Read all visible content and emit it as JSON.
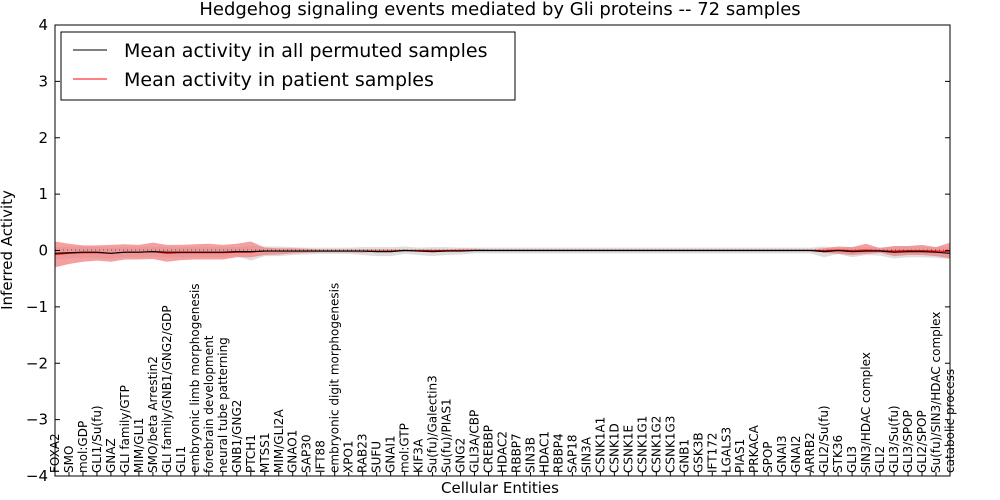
{
  "chart_data": {
    "type": "line",
    "title": "Hedgehog signaling events mediated by Gli proteins -- 72 samples",
    "xlabel": "Cellular Entities",
    "ylabel": "Inferred Activity",
    "ylim": [
      -4,
      4
    ],
    "yticks": [
      -4,
      -3,
      -2,
      -1,
      0,
      1,
      2,
      3,
      4
    ],
    "ytick_labels": [
      "−4",
      "−3",
      "−2",
      "−1",
      "0",
      "1",
      "2",
      "3",
      "4"
    ],
    "legend_position": "top-left",
    "categories": [
      "FOXA2",
      "SMO",
      "mol:GDP",
      "GLI1/Su(fu)",
      "GNAZ",
      "GLI family/GTP",
      "MIM/GLI1",
      "SMO/beta Arrestin2",
      "GLI family/GNB1/GNG2/GDP",
      "GLI1",
      "embryonic limb morphogenesis",
      "forebrain development",
      "neural tube patterning",
      "GNB1/GNG2",
      "PTCH1",
      "MTSS1",
      "MIM/GLI2A",
      "GNAO1",
      "SAP30",
      "IFT88",
      "embryonic digit morphogenesis",
      "XPO1",
      "RAB23",
      "SUFU",
      "GNAI1",
      "mol:GTP",
      "KIF3A",
      "Su(fu)/Galectin3",
      "Su(fu)/PIAS1",
      "GNG2",
      "GLI3A/CBP",
      "CREBBP",
      "HDAC2",
      "RBBP7",
      "SIN3B",
      "HDAC1",
      "RBBP4",
      "SAP18",
      "SIN3A",
      "CSNK1A1",
      "CSNK1D",
      "CSNK1E",
      "CSNK1G1",
      "CSNK1G2",
      "CSNK1G3",
      "GNB1",
      "GSK3B",
      "IFT172",
      "LGALS3",
      "PIAS1",
      "PRKACA",
      "SPOP",
      "GNAI3",
      "GNAI2",
      "ARRB2",
      "GLI2/Su(fu)",
      "STK36",
      "GLI3",
      "SIN3/HDAC complex",
      "GLI2",
      "GLI3/Su(fu)",
      "GLI3/SPOP",
      "GLI2/SPOP",
      "Su(fu)/SIN3/HDAC complex",
      "catabolic process"
    ],
    "series": [
      {
        "name": "Mean activity in all permuted samples",
        "color": "#000000",
        "values": [
          -0.05,
          -0.04,
          -0.03,
          -0.03,
          -0.05,
          -0.03,
          -0.03,
          -0.02,
          -0.03,
          -0.03,
          -0.03,
          -0.03,
          -0.03,
          -0.02,
          -0.02,
          -0.01,
          -0.01,
          -0.01,
          -0.01,
          -0.01,
          -0.01,
          -0.01,
          -0.01,
          -0.02,
          -0.02,
          0.0,
          -0.01,
          -0.02,
          -0.01,
          -0.01,
          0.0,
          0.0,
          0.0,
          0.0,
          0.0,
          0.0,
          0.0,
          0.0,
          0.0,
          0.0,
          0.0,
          0.0,
          0.0,
          0.0,
          0.0,
          0.0,
          0.0,
          0.0,
          0.0,
          0.0,
          0.0,
          0.0,
          0.0,
          0.0,
          0.0,
          -0.02,
          0.0,
          -0.02,
          -0.01,
          -0.01,
          -0.03,
          -0.02,
          -0.02,
          -0.03,
          -0.05
        ],
        "band_lower": [
          -0.16,
          -0.14,
          -0.13,
          -0.13,
          -0.15,
          -0.12,
          -0.12,
          -0.11,
          -0.12,
          -0.12,
          -0.12,
          -0.12,
          -0.12,
          -0.1,
          -0.18,
          -0.1,
          -0.1,
          -0.08,
          -0.07,
          -0.06,
          -0.06,
          -0.06,
          -0.08,
          -0.1,
          -0.1,
          -0.06,
          -0.08,
          -0.1,
          -0.08,
          -0.07,
          -0.05,
          -0.05,
          -0.05,
          -0.05,
          -0.05,
          -0.05,
          -0.05,
          -0.05,
          -0.05,
          -0.05,
          -0.05,
          -0.05,
          -0.05,
          -0.05,
          -0.05,
          -0.05,
          -0.05,
          -0.05,
          -0.05,
          -0.05,
          -0.05,
          -0.05,
          -0.05,
          -0.05,
          -0.05,
          -0.12,
          -0.06,
          -0.12,
          -0.08,
          -0.09,
          -0.14,
          -0.12,
          -0.12,
          -0.13,
          -0.15
        ],
        "band_upper": [
          0.06,
          0.06,
          0.07,
          0.07,
          0.05,
          0.06,
          0.06,
          0.07,
          0.06,
          0.06,
          0.06,
          0.06,
          0.06,
          0.06,
          0.08,
          0.07,
          0.07,
          0.06,
          0.05,
          0.05,
          0.05,
          0.05,
          0.06,
          0.06,
          0.06,
          0.07,
          0.05,
          0.06,
          0.06,
          0.05,
          0.05,
          0.05,
          0.05,
          0.05,
          0.05,
          0.05,
          0.05,
          0.05,
          0.05,
          0.05,
          0.05,
          0.05,
          0.05,
          0.05,
          0.05,
          0.05,
          0.05,
          0.05,
          0.05,
          0.05,
          0.05,
          0.05,
          0.05,
          0.05,
          0.05,
          0.07,
          0.05,
          0.06,
          0.06,
          0.06,
          0.07,
          0.07,
          0.07,
          0.06,
          0.06
        ]
      },
      {
        "name": "Mean activity in patient samples",
        "color": "#ff0000",
        "band_color": "#f08080",
        "values": [
          -0.07,
          -0.05,
          -0.04,
          -0.04,
          -0.05,
          -0.03,
          -0.03,
          -0.02,
          -0.05,
          -0.04,
          -0.04,
          -0.04,
          -0.04,
          -0.03,
          -0.03,
          -0.01,
          -0.01,
          -0.01,
          -0.01,
          -0.01,
          -0.01,
          -0.01,
          -0.01,
          -0.01,
          -0.01,
          0.0,
          0.0,
          0.0,
          0.0,
          0.0,
          0.0,
          0.0,
          0.0,
          0.0,
          0.0,
          0.0,
          0.0,
          0.0,
          0.0,
          0.0,
          0.0,
          0.0,
          0.0,
          0.0,
          0.0,
          0.0,
          0.0,
          0.0,
          0.0,
          0.0,
          0.0,
          0.0,
          0.0,
          0.0,
          0.0,
          0.0,
          0.01,
          0.0,
          0.01,
          0.0,
          -0.01,
          0.0,
          0.0,
          -0.01,
          -0.02
        ],
        "band_lower": [
          -0.3,
          -0.24,
          -0.2,
          -0.18,
          -0.2,
          -0.16,
          -0.16,
          -0.15,
          -0.2,
          -0.17,
          -0.16,
          -0.16,
          -0.16,
          -0.12,
          -0.12,
          -0.08,
          -0.07,
          -0.05,
          -0.04,
          -0.03,
          -0.03,
          -0.03,
          -0.04,
          -0.02,
          -0.02,
          0.0,
          -0.01,
          -0.02,
          -0.02,
          -0.01,
          -0.01,
          -0.01,
          0.0,
          0.0,
          0.0,
          0.0,
          0.0,
          0.0,
          0.0,
          0.0,
          0.0,
          0.0,
          0.0,
          0.0,
          0.0,
          0.0,
          0.0,
          0.0,
          0.0,
          0.0,
          0.0,
          0.0,
          0.0,
          0.0,
          0.0,
          -0.04,
          -0.06,
          -0.08,
          -0.06,
          -0.04,
          -0.1,
          -0.08,
          -0.08,
          -0.1,
          -0.14
        ],
        "band_upper": [
          0.16,
          0.12,
          0.09,
          0.09,
          0.1,
          0.11,
          0.1,
          0.14,
          0.1,
          0.1,
          0.11,
          0.12,
          0.1,
          0.12,
          0.16,
          0.05,
          0.04,
          0.04,
          0.03,
          0.02,
          0.02,
          0.02,
          0.02,
          0.02,
          0.02,
          0.02,
          0.02,
          0.02,
          0.02,
          0.03,
          0.03,
          0.02,
          0.02,
          0.02,
          0.02,
          0.02,
          0.02,
          0.02,
          0.02,
          0.02,
          0.02,
          0.02,
          0.02,
          0.02,
          0.02,
          0.02,
          0.02,
          0.02,
          0.02,
          0.02,
          0.02,
          0.02,
          0.02,
          0.02,
          0.02,
          0.04,
          0.07,
          0.06,
          0.12,
          0.04,
          0.08,
          0.08,
          0.1,
          0.06,
          0.14
        ]
      }
    ]
  }
}
